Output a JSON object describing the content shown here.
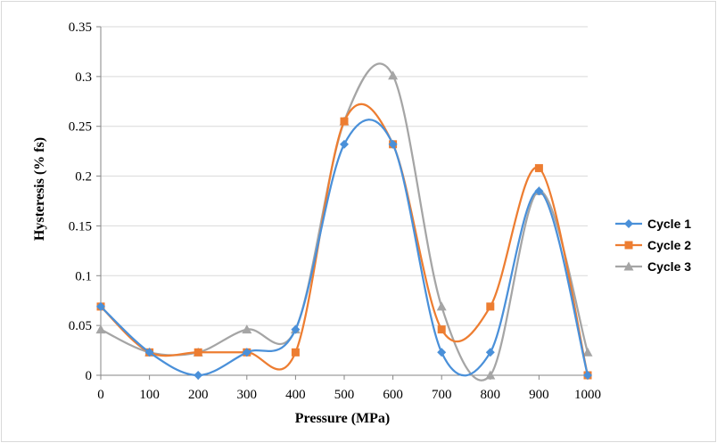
{
  "chart_data": {
    "type": "line",
    "xlabel": "Pressure (MPa)",
    "ylabel": "Hysteresis (% fs)",
    "x": [
      0,
      100,
      200,
      300,
      400,
      500,
      600,
      700,
      800,
      900,
      1000
    ],
    "xlim": [
      0,
      1000
    ],
    "ylim": [
      0,
      0.35
    ],
    "xticks": [
      "0",
      "100",
      "200",
      "300",
      "400",
      "500",
      "600",
      "700",
      "800",
      "900",
      "1000"
    ],
    "yticks": [
      "0",
      "0.05",
      "0.1",
      "0.15",
      "0.2",
      "0.25",
      "0.3",
      "0.35"
    ],
    "grid": "horizontal",
    "legend_position": "right",
    "series": [
      {
        "name": "Cycle 1",
        "color": "#4a90d9",
        "marker": "diamond",
        "values": [
          0.069,
          0.023,
          0.0,
          0.023,
          0.046,
          0.232,
          0.232,
          0.023,
          0.023,
          0.185,
          0.0
        ]
      },
      {
        "name": "Cycle 2",
        "color": "#ed7d31",
        "marker": "square",
        "values": [
          0.069,
          0.023,
          0.023,
          0.023,
          0.023,
          0.255,
          0.232,
          0.046,
          0.069,
          0.208,
          0.0
        ]
      },
      {
        "name": "Cycle 3",
        "color": "#a5a5a5",
        "marker": "triangle",
        "values": [
          0.046,
          0.023,
          0.023,
          0.046,
          0.046,
          0.255,
          0.301,
          0.069,
          0.0,
          0.185,
          0.023
        ]
      }
    ]
  }
}
